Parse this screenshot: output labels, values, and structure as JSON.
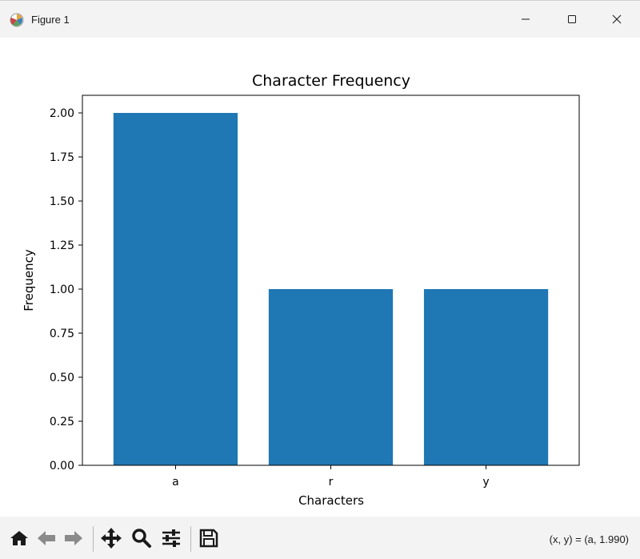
{
  "window": {
    "title": "Figure 1"
  },
  "toolbar": {
    "tools": [
      "home-icon",
      "back-arrow-icon",
      "forward-arrow-icon",
      "pan-icon",
      "zoom-icon",
      "configure-subplots-icon",
      "save-icon"
    ],
    "status": "(x, y) = (a, 1.990)"
  },
  "colors": {
    "bar": "#1f77b4",
    "titlebar": "#f3f3f3",
    "toolbar": "#f3f3f3"
  },
  "chart_data": {
    "type": "bar",
    "title": "Character Frequency",
    "xlabel": "Characters",
    "ylabel": "Frequency",
    "categories": [
      "a",
      "r",
      "y"
    ],
    "values": [
      2,
      1,
      1
    ],
    "ylim": [
      0,
      2.1
    ],
    "yticks": [
      "0.00",
      "0.25",
      "0.50",
      "0.75",
      "1.00",
      "1.25",
      "1.50",
      "1.75",
      "2.00"
    ],
    "grid": false
  }
}
